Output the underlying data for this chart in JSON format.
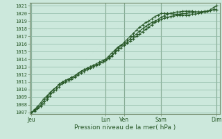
{
  "bg_color": "#cce8dc",
  "plot_bg_color": "#cce8dc",
  "grid_color": "#90bba8",
  "line_color": "#2a5a2a",
  "marker_color": "#2a5a2a",
  "ylabel_values": [
    1007,
    1008,
    1009,
    1010,
    1011,
    1012,
    1013,
    1014,
    1015,
    1016,
    1017,
    1018,
    1019,
    1020,
    1021
  ],
  "ylim": [
    1006.8,
    1021.4
  ],
  "xlabel": "Pression niveau de la mer( hPa )",
  "day_labels": [
    "Jeu",
    "Lun",
    "Ven",
    "Sam",
    "Dim"
  ],
  "day_positions": [
    0,
    48,
    60,
    84,
    120
  ],
  "xlim": [
    -1,
    122
  ],
  "n_points": 121,
  "line1_x": [
    0,
    2,
    4,
    6,
    8,
    10,
    12,
    14,
    16,
    18,
    20,
    22,
    24,
    26,
    28,
    30,
    32,
    34,
    36,
    38,
    40,
    42,
    44,
    46,
    48,
    50,
    52,
    54,
    56,
    58,
    60,
    62,
    64,
    66,
    68,
    70,
    72,
    74,
    76,
    78,
    80,
    82,
    84,
    86,
    88,
    90,
    92,
    94,
    96,
    98,
    100,
    102,
    104,
    106,
    108,
    110,
    112,
    114,
    116,
    118,
    120
  ],
  "line1_y": [
    1007.0,
    1007.4,
    1007.8,
    1008.3,
    1008.8,
    1009.2,
    1009.6,
    1010.0,
    1010.3,
    1010.7,
    1011.0,
    1011.2,
    1011.4,
    1011.6,
    1011.8,
    1012.1,
    1012.4,
    1012.6,
    1012.8,
    1013.0,
    1013.2,
    1013.4,
    1013.6,
    1013.8,
    1014.0,
    1014.4,
    1014.8,
    1015.2,
    1015.6,
    1015.8,
    1016.0,
    1016.3,
    1016.7,
    1017.0,
    1017.3,
    1017.7,
    1018.0,
    1018.3,
    1018.6,
    1018.8,
    1019.0,
    1019.2,
    1019.5,
    1019.7,
    1019.9,
    1020.0,
    1020.1,
    1020.2,
    1020.2,
    1020.3,
    1020.3,
    1020.3,
    1020.3,
    1020.2,
    1020.2,
    1020.2,
    1020.2,
    1020.3,
    1020.5,
    1020.8,
    1021.0
  ],
  "line2_x": [
    0,
    2,
    4,
    6,
    8,
    10,
    12,
    14,
    16,
    18,
    20,
    22,
    24,
    26,
    28,
    30,
    32,
    34,
    36,
    38,
    40,
    42,
    44,
    46,
    48,
    50,
    52,
    54,
    56,
    58,
    60,
    62,
    64,
    66,
    68,
    70,
    72,
    74,
    76,
    78,
    80,
    82,
    84,
    86,
    88,
    90,
    92,
    94,
    96,
    98,
    100,
    102,
    104,
    106,
    108,
    110,
    112,
    114,
    116,
    118,
    120
  ],
  "line2_y": [
    1007.0,
    1007.3,
    1007.6,
    1008.0,
    1008.5,
    1009.0,
    1009.5,
    1010.0,
    1010.3,
    1010.7,
    1011.0,
    1011.2,
    1011.4,
    1011.6,
    1011.8,
    1012.1,
    1012.4,
    1012.6,
    1012.8,
    1013.0,
    1013.0,
    1013.2,
    1013.4,
    1013.6,
    1013.8,
    1014.2,
    1014.5,
    1015.0,
    1015.5,
    1015.8,
    1016.2,
    1016.6,
    1017.0,
    1017.4,
    1017.8,
    1018.2,
    1018.5,
    1018.8,
    1019.0,
    1019.3,
    1019.6,
    1019.8,
    1020.0,
    1020.0,
    1020.0,
    1020.0,
    1019.9,
    1019.9,
    1019.8,
    1019.8,
    1019.8,
    1019.8,
    1019.9,
    1019.9,
    1020.0,
    1020.1,
    1020.2,
    1020.3,
    1020.4,
    1020.5,
    1020.5
  ],
  "line3_x": [
    0,
    2,
    4,
    6,
    8,
    10,
    12,
    14,
    16,
    18,
    20,
    22,
    24,
    26,
    28,
    30,
    32,
    34,
    36,
    38,
    40,
    42,
    44,
    46,
    48,
    50,
    52,
    54,
    56,
    58,
    60,
    62,
    64,
    66,
    68,
    70,
    72,
    74,
    76,
    78,
    80,
    82,
    84,
    86,
    88,
    90,
    92,
    94,
    96,
    98,
    100,
    102,
    104,
    106,
    108,
    110,
    112,
    114,
    116,
    118,
    120
  ],
  "line3_y": [
    1007.0,
    1007.2,
    1007.5,
    1007.8,
    1008.2,
    1008.7,
    1009.2,
    1009.7,
    1010.0,
    1010.4,
    1010.8,
    1011.0,
    1011.2,
    1011.4,
    1011.6,
    1011.9,
    1012.2,
    1012.4,
    1012.6,
    1012.8,
    1013.0,
    1013.2,
    1013.4,
    1013.6,
    1013.8,
    1014.1,
    1014.4,
    1014.8,
    1015.2,
    1015.5,
    1015.8,
    1016.1,
    1016.4,
    1016.7,
    1017.0,
    1017.3,
    1017.6,
    1017.9,
    1018.2,
    1018.5,
    1018.8,
    1019.0,
    1019.2,
    1019.4,
    1019.5,
    1019.6,
    1019.7,
    1019.8,
    1019.9,
    1020.0,
    1020.0,
    1020.1,
    1020.1,
    1020.2,
    1020.2,
    1020.2,
    1020.3,
    1020.3,
    1020.4,
    1020.5,
    1020.5
  ]
}
